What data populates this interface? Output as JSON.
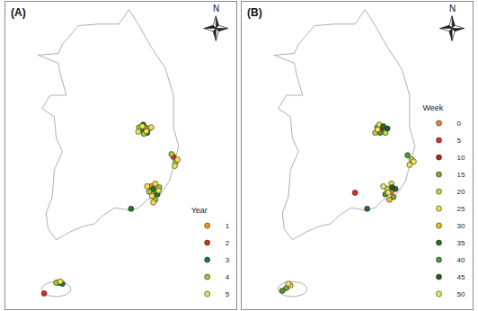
{
  "chart_data": [
    {
      "type": "scatter",
      "title": "(A)",
      "legend_title": "Year",
      "legend": "lower right",
      "xlim": [
        125.3,
        131.0
      ],
      "ylim": [
        33.0,
        38.75
      ],
      "grid": false,
      "tick_labels": false,
      "annotations": [
        "N"
      ],
      "series": [
        {
          "name": "1",
          "color": "#f39c12",
          "x": [
            129.0,
            128.9,
            128.75
          ],
          "y": [
            35.2,
            35.3,
            36.4
          ]
        },
        {
          "name": "2",
          "color": "#d7301f",
          "x": [
            126.25,
            129.45
          ],
          "y": [
            33.3,
            35.85
          ]
        },
        {
          "name": "3",
          "color": "#1b7a2e",
          "x": [
            128.65,
            128.8,
            128.7,
            129.05,
            128.95,
            126.6,
            126.7,
            128.4
          ],
          "y": [
            36.35,
            36.3,
            36.45,
            35.15,
            35.25,
            33.5,
            33.48,
            34.88
          ]
        },
        {
          "name": "4",
          "color": "#9acd32",
          "x": [
            128.6,
            128.85,
            128.72,
            129.5,
            129.4,
            128.85,
            129.1,
            129.0,
            126.55
          ],
          "y": [
            36.4,
            36.38,
            36.28,
            35.75,
            35.9,
            35.2,
            35.28,
            35.05,
            33.5
          ]
        },
        {
          "name": "5",
          "color": "#f4e04d",
          "x": [
            128.68,
            128.78,
            128.58,
            128.9,
            129.55,
            129.48,
            128.92,
            129.08,
            128.8,
            129.0,
            128.95,
            126.65
          ],
          "y": [
            36.42,
            36.33,
            36.32,
            36.4,
            35.8,
            35.68,
            35.12,
            35.22,
            35.3,
            35.35,
            35.0,
            33.52
          ]
        }
      ]
    },
    {
      "type": "scatter",
      "title": "(B)",
      "legend_title": "Week",
      "legend": "lower right",
      "xlim": [
        125.3,
        131.0
      ],
      "ylim": [
        33.0,
        38.75
      ],
      "grid": false,
      "tick_labels": false,
      "annotations": [
        "N"
      ],
      "series": [
        {
          "name": "0",
          "color": "#f08030",
          "x": [
            129.0
          ],
          "y": [
            35.2
          ]
        },
        {
          "name": "5",
          "color": "#e03020",
          "x": [
            128.1
          ],
          "y": [
            35.18
          ]
        },
        {
          "name": "10",
          "color": "#b02020",
          "x": [
            128.75
          ],
          "y": [
            36.35
          ]
        },
        {
          "name": "15",
          "color": "#8fa030",
          "x": [
            128.65,
            129.05,
            126.4
          ],
          "y": [
            36.4,
            35.1,
            33.4
          ]
        },
        {
          "name": "20",
          "color": "#c0d840",
          "x": [
            128.85,
            129.5,
            128.9
          ],
          "y": [
            36.3,
            35.8,
            35.25
          ]
        },
        {
          "name": "25",
          "color": "#f0e040",
          "x": [
            128.7,
            129.45,
            129.0,
            126.5
          ],
          "y": [
            36.45,
            35.7,
            35.35,
            33.45
          ]
        },
        {
          "name": "30",
          "color": "#e8c020",
          "x": [
            128.6,
            128.95
          ],
          "y": [
            36.3,
            35.05
          ]
        },
        {
          "name": "35",
          "color": "#2a6e2a",
          "x": [
            128.8,
            129.1,
            128.4
          ],
          "y": [
            36.42,
            35.25,
            34.88
          ]
        },
        {
          "name": "40",
          "color": "#4f9a2f",
          "x": [
            128.72,
            129.4,
            128.85,
            126.3
          ],
          "y": [
            36.3,
            35.88,
            35.15,
            33.35
          ]
        },
        {
          "name": "45",
          "color": "#1e5e1e",
          "x": [
            128.9,
            129.02
          ],
          "y": [
            36.38,
            35.28
          ]
        },
        {
          "name": "50",
          "color": "#e8e860",
          "x": [
            128.66,
            129.55,
            128.92,
            126.45,
            128.8
          ],
          "y": [
            36.36,
            35.76,
            35.18,
            33.48,
            35.3
          ]
        }
      ]
    }
  ]
}
